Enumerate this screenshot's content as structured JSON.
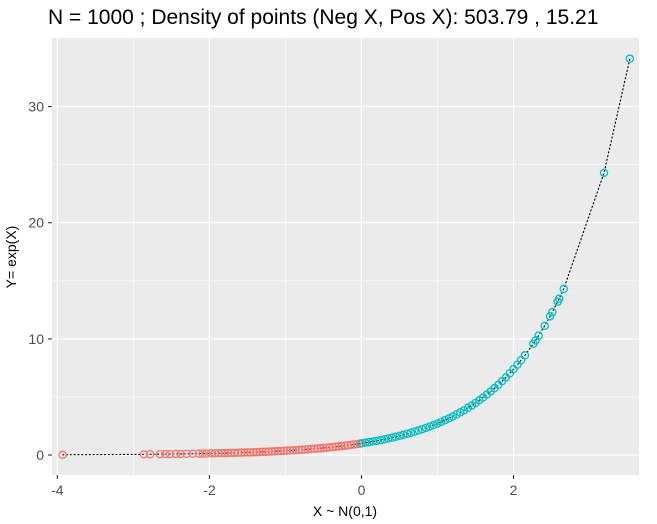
{
  "chart_data": {
    "type": "scatter",
    "title": "N =  1000 ;  Density of points (Neg X, Pos X):  503.79 ,  15.21",
    "xlabel": "X ~ N(0,1)",
    "ylabel": "Y= exp(X)",
    "xlim": [
      -4.07,
      3.65
    ],
    "ylim": [
      -1.72,
      35.9
    ],
    "x_ticks": [
      -4,
      -2,
      0,
      2
    ],
    "x_tick_labels": [
      "-4",
      "-2",
      "0",
      "2"
    ],
    "y_ticks": [
      0,
      10,
      20,
      30
    ],
    "y_tick_labels": [
      "0",
      "10",
      "20",
      "30"
    ],
    "grid": true,
    "legend": "none",
    "curve": {
      "function": "exp(x)",
      "style": "dotted",
      "color": "#000000"
    },
    "series": [
      {
        "group": "X < 0",
        "color": "#F8766D",
        "x": [
          -3.93,
          -2.86,
          -2.78,
          -2.65,
          -2.58,
          -2.52,
          -2.44,
          -2.38,
          -2.3,
          -2.22,
          -2.14,
          -2.09,
          -2.04,
          -1.98,
          -1.93,
          -1.88,
          -1.84,
          -1.8,
          -1.75,
          -1.71,
          -1.67,
          -1.62,
          -1.58,
          -1.54,
          -1.5,
          -1.46,
          -1.42,
          -1.38,
          -1.34,
          -1.3,
          -1.26,
          -1.22,
          -1.18,
          -1.14,
          -1.1,
          -1.06,
          -1.02,
          -0.98,
          -0.94,
          -0.9,
          -0.86,
          -0.82,
          -0.78,
          -0.74,
          -0.7,
          -0.66,
          -0.62,
          -0.58,
          -0.54,
          -0.5,
          -0.46,
          -0.42,
          -0.38,
          -0.34,
          -0.3,
          -0.26,
          -0.22,
          -0.18,
          -0.14,
          -0.1,
          -0.06,
          -0.02
        ],
        "y": [
          0.02,
          0.057,
          0.062,
          0.071,
          0.076,
          0.08,
          0.087,
          0.093,
          0.1,
          0.109,
          0.118,
          0.124,
          0.13,
          0.138,
          0.145,
          0.153,
          0.159,
          0.165,
          0.174,
          0.181,
          0.188,
          0.198,
          0.206,
          0.214,
          0.223,
          0.232,
          0.242,
          0.252,
          0.262,
          0.273,
          0.284,
          0.295,
          0.307,
          0.32,
          0.333,
          0.346,
          0.361,
          0.375,
          0.391,
          0.407,
          0.423,
          0.44,
          0.458,
          0.477,
          0.497,
          0.517,
          0.538,
          0.56,
          0.583,
          0.607,
          0.631,
          0.657,
          0.684,
          0.712,
          0.741,
          0.771,
          0.803,
          0.835,
          0.869,
          0.905,
          0.942,
          0.98
        ]
      },
      {
        "group": "X >= 0",
        "color": "#00BFC4",
        "x": [
          0.0,
          0.05,
          0.1,
          0.15,
          0.2,
          0.25,
          0.3,
          0.35,
          0.4,
          0.45,
          0.5,
          0.55,
          0.6,
          0.65,
          0.7,
          0.75,
          0.8,
          0.85,
          0.9,
          0.95,
          1.0,
          1.05,
          1.1,
          1.15,
          1.2,
          1.25,
          1.3,
          1.35,
          1.4,
          1.45,
          1.5,
          1.55,
          1.6,
          1.65,
          1.7,
          1.75,
          1.8,
          1.85,
          1.9,
          1.95,
          2.0,
          2.05,
          2.1,
          2.15,
          2.26,
          2.29,
          2.33,
          2.41,
          2.48,
          2.51,
          2.58,
          2.6,
          2.66,
          3.19,
          3.53
        ],
        "y": [
          1.0,
          1.051,
          1.105,
          1.162,
          1.221,
          1.284,
          1.35,
          1.419,
          1.492,
          1.568,
          1.649,
          1.733,
          1.822,
          1.916,
          2.014,
          2.117,
          2.226,
          2.34,
          2.46,
          2.586,
          2.718,
          2.858,
          3.004,
          3.158,
          3.32,
          3.49,
          3.669,
          3.857,
          4.055,
          4.263,
          4.482,
          4.711,
          4.953,
          5.207,
          5.474,
          5.755,
          6.05,
          6.36,
          6.686,
          7.029,
          7.389,
          7.768,
          8.166,
          8.585,
          9.58,
          9.87,
          10.28,
          11.13,
          11.94,
          12.3,
          13.2,
          13.46,
          14.3,
          24.29,
          34.12
        ]
      }
    ]
  }
}
